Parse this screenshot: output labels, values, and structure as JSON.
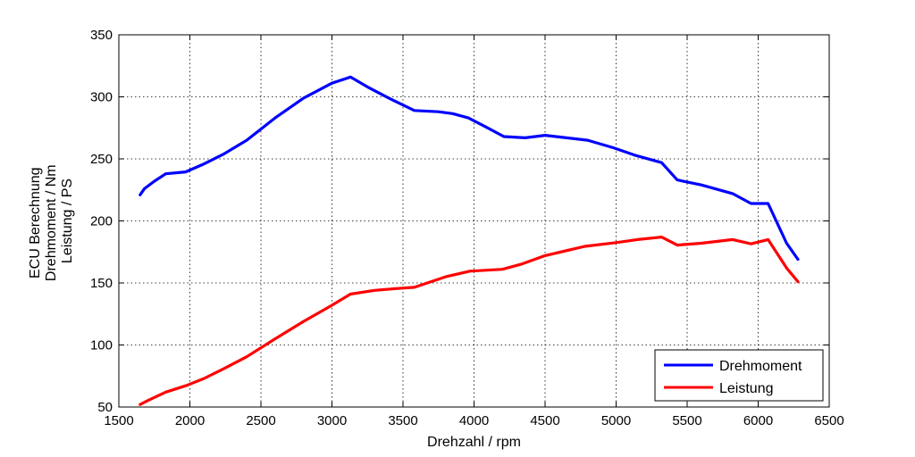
{
  "chart_data": {
    "type": "line",
    "title": "",
    "xlabel": "Drehzahl / rpm",
    "ylabel_lines": [
      "ECU Berechnung",
      "Drehmoment / Nm",
      "Leistung / PS"
    ],
    "xlim": [
      1500,
      6500
    ],
    "ylim": [
      50,
      350
    ],
    "xticks": [
      1500,
      2000,
      2500,
      3000,
      3500,
      4000,
      4500,
      5000,
      5500,
      6000,
      6500
    ],
    "yticks": [
      50,
      100,
      150,
      200,
      250,
      300,
      350
    ],
    "grid": true,
    "legend_position": "bottom-right",
    "series": [
      {
        "name": "Drehmoment",
        "color": "#0000ff",
        "points": [
          [
            1650,
            221
          ],
          [
            1680,
            226
          ],
          [
            1750,
            232
          ],
          [
            1830,
            238
          ],
          [
            1970,
            239.5
          ],
          [
            2100,
            246
          ],
          [
            2240,
            254
          ],
          [
            2400,
            265
          ],
          [
            2600,
            283
          ],
          [
            2800,
            299
          ],
          [
            3000,
            311
          ],
          [
            3130,
            316
          ],
          [
            3250,
            308
          ],
          [
            3400,
            299
          ],
          [
            3580,
            289
          ],
          [
            3750,
            288
          ],
          [
            3850,
            286.5
          ],
          [
            3960,
            283
          ],
          [
            4080,
            276
          ],
          [
            4210,
            268
          ],
          [
            4360,
            267
          ],
          [
            4500,
            269
          ],
          [
            4650,
            267
          ],
          [
            4800,
            265
          ],
          [
            4980,
            259
          ],
          [
            5130,
            253
          ],
          [
            5320,
            247
          ],
          [
            5430,
            233
          ],
          [
            5600,
            229
          ],
          [
            5820,
            222
          ],
          [
            5950,
            214
          ],
          [
            6070,
            214
          ],
          [
            6200,
            182
          ],
          [
            6280,
            169
          ]
        ]
      },
      {
        "name": "Leistung",
        "color": "#ff0000",
        "points": [
          [
            1650,
            52
          ],
          [
            1700,
            55
          ],
          [
            1830,
            62
          ],
          [
            1980,
            67.5
          ],
          [
            2100,
            73
          ],
          [
            2240,
            81
          ],
          [
            2400,
            90.5
          ],
          [
            2600,
            105
          ],
          [
            2800,
            119
          ],
          [
            3000,
            132
          ],
          [
            3130,
            141
          ],
          [
            3300,
            144
          ],
          [
            3450,
            145.5
          ],
          [
            3580,
            146.5
          ],
          [
            3800,
            155
          ],
          [
            3970,
            159.5
          ],
          [
            4200,
            161
          ],
          [
            4330,
            165
          ],
          [
            4500,
            172
          ],
          [
            4780,
            179.5
          ],
          [
            5000,
            182.5
          ],
          [
            5150,
            185
          ],
          [
            5320,
            187
          ],
          [
            5430,
            180.5
          ],
          [
            5600,
            182
          ],
          [
            5820,
            185
          ],
          [
            5950,
            181.5
          ],
          [
            6070,
            185
          ],
          [
            6200,
            162
          ],
          [
            6280,
            151
          ]
        ]
      }
    ]
  }
}
